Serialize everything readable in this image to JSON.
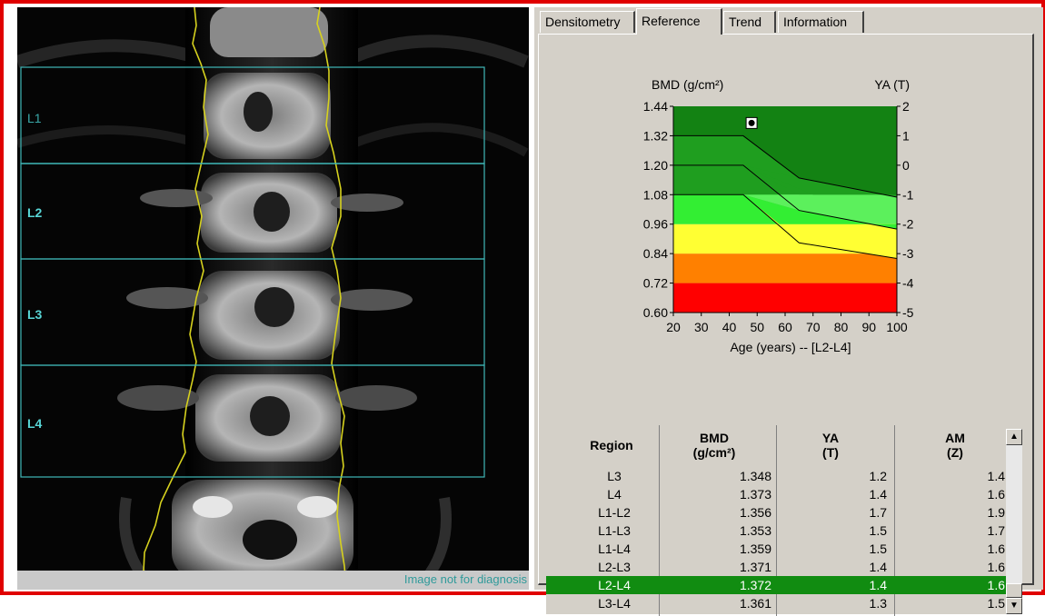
{
  "scan": {
    "roi_labels": [
      "L1",
      "L2",
      "L3",
      "L4"
    ],
    "footer_note": "Image not for diagnosis"
  },
  "tabs": [
    {
      "label": "Densitometry",
      "selected": false
    },
    {
      "label": "Reference",
      "selected": true
    },
    {
      "label": "Trend",
      "selected": false
    },
    {
      "label": "Information",
      "selected": false
    }
  ],
  "chart_data": {
    "type": "line",
    "title": "",
    "ylabel": "BMD (g/cm²)",
    "y2label": "YA (T)",
    "xlabel": "Age (years) -- [L2-L4]",
    "xlim": [
      20,
      100
    ],
    "ylim": [
      0.6,
      1.44
    ],
    "y2lim": [
      -5,
      2
    ],
    "x_ticks": [
      20,
      30,
      40,
      50,
      60,
      70,
      80,
      90,
      100
    ],
    "y_ticks": [
      "1.44",
      "1.32",
      "1.20",
      "1.08",
      "0.96",
      "0.84",
      "0.72",
      "0.60"
    ],
    "y2_ticks": [
      "2",
      "1",
      "0",
      "-1",
      "-2",
      "-3",
      "-4",
      "-5"
    ],
    "bands": [
      {
        "from": 0.6,
        "to": 0.72,
        "color": "#ff0000"
      },
      {
        "from": 0.72,
        "to": 0.84,
        "color": "#ff8000"
      },
      {
        "from": 0.84,
        "to": 0.96,
        "color": "#ffff33"
      },
      {
        "from": 0.96,
        "to": 1.08,
        "color": "#33ee33"
      },
      {
        "from": 1.08,
        "to": 1.44,
        "color": "#1f9e1f"
      }
    ],
    "curves": [
      {
        "points": [
          [
            20,
            1.32
          ],
          [
            45,
            1.32
          ],
          [
            65,
            1.148
          ],
          [
            100,
            1.07
          ]
        ],
        "fill": "#1d8a1d"
      },
      {
        "points": [
          [
            20,
            1.2
          ],
          [
            45,
            1.2
          ],
          [
            65,
            1.016
          ],
          [
            100,
            0.94
          ]
        ],
        "fill": "#60f760"
      },
      {
        "points": [
          [
            20,
            1.08
          ],
          [
            45,
            1.08
          ],
          [
            65,
            0.884
          ],
          [
            100,
            0.82
          ]
        ],
        "fill": "#ffff33"
      }
    ],
    "patient_point": {
      "x": 48,
      "y": 1.372
    }
  },
  "results": {
    "headers": {
      "region": "Region",
      "bmd": [
        "BMD",
        "(g/cm²)"
      ],
      "ya": [
        "YA",
        "(T)"
      ],
      "am": [
        "AM",
        "(Z)"
      ]
    },
    "rows": [
      {
        "region": "L3",
        "bmd": "1.348",
        "ya": "1.2",
        "am": "1.4",
        "selected": false
      },
      {
        "region": "L4",
        "bmd": "1.373",
        "ya": "1.4",
        "am": "1.6",
        "selected": false
      },
      {
        "region": "L1-L2",
        "bmd": "1.356",
        "ya": "1.7",
        "am": "1.9",
        "selected": false
      },
      {
        "region": "L1-L3",
        "bmd": "1.353",
        "ya": "1.5",
        "am": "1.7",
        "selected": false
      },
      {
        "region": "L1-L4",
        "bmd": "1.359",
        "ya": "1.5",
        "am": "1.6",
        "selected": false
      },
      {
        "region": "L2-L3",
        "bmd": "1.371",
        "ya": "1.4",
        "am": "1.6",
        "selected": false
      },
      {
        "region": "L2-L4",
        "bmd": "1.372",
        "ya": "1.4",
        "am": "1.6",
        "selected": true
      },
      {
        "region": "L3-L4",
        "bmd": "1.361",
        "ya": "1.3",
        "am": "1.5",
        "selected": false
      }
    ]
  }
}
